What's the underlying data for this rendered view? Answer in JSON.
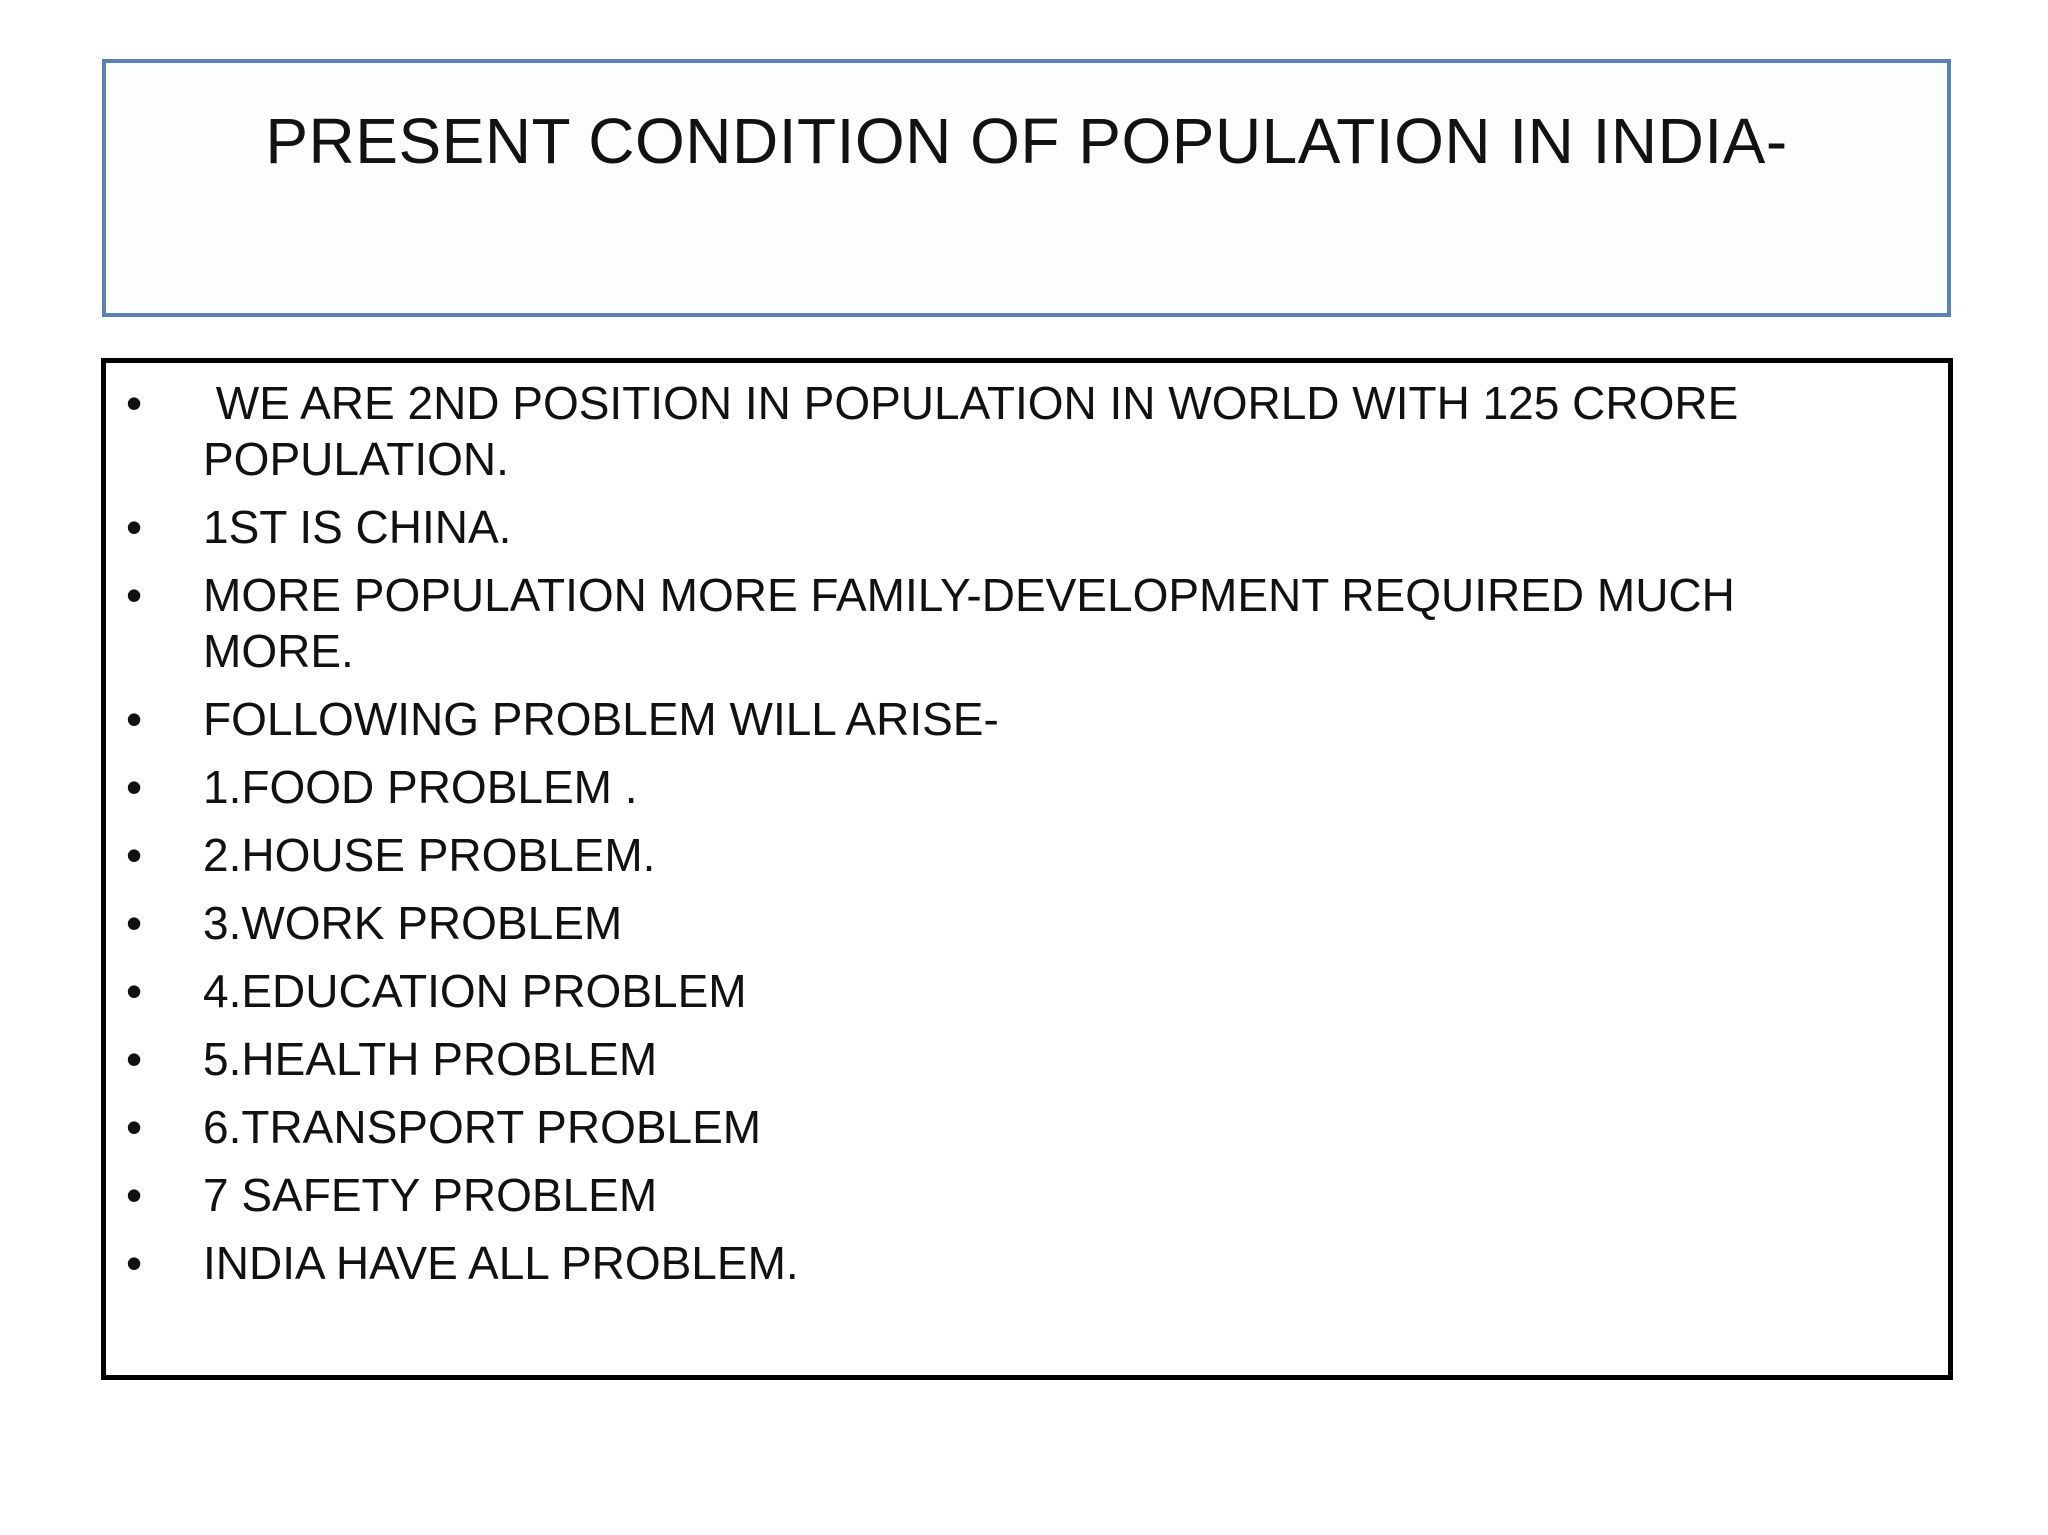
{
  "slide": {
    "title": "PRESENT CONDITION OF POPULATION IN INDIA-",
    "bullets": [
      " WE ARE 2ND POSITION IN POPULATION IN WORLD WITH 125 CRORE POPULATION.",
      "1ST IS CHINA.",
      "MORE POPULATION MORE FAMILY-DEVELOPMENT REQUIRED MUCH MORE.",
      "FOLLOWING PROBLEM WILL ARISE-",
      "1.FOOD PROBLEM .",
      "2.HOUSE PROBLEM.",
      "3.WORK PROBLEM",
      "4.EDUCATION PROBLEM",
      "5.HEALTH PROBLEM",
      "6.TRANSPORT PROBLEM",
      "7 SAFETY PROBLEM",
      "INDIA HAVE ALL PROBLEM."
    ],
    "bullet_symbol": "•",
    "colors": {
      "title_border": "#5b82b8",
      "content_border": "#000000",
      "text": "#111111"
    }
  }
}
